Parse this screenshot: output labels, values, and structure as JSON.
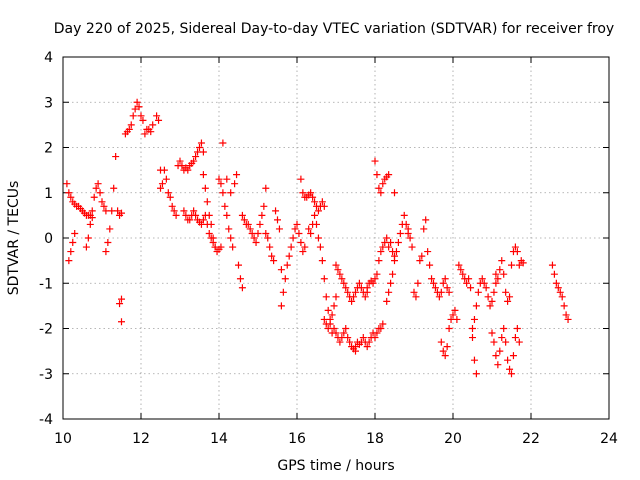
{
  "chart_data": {
    "type": "scatter",
    "title": "Day 220 of 2025, Sidereal Day-to-day VTEC variation (SDTVAR) for receiver froy",
    "xlabel": "GPS time / hours",
    "ylabel": "SDTVAR / TECUs",
    "xlim": [
      10,
      24
    ],
    "ylim": [
      -4,
      4
    ],
    "xticks": [
      10,
      12,
      14,
      16,
      18,
      20,
      22,
      24
    ],
    "yticks": [
      -4,
      -3,
      -2,
      -1,
      0,
      1,
      2,
      3,
      4
    ],
    "xtick_labels": [
      "10",
      "12",
      "14",
      "16",
      "18",
      "20",
      "22",
      "24"
    ],
    "ytick_labels": [
      "-4",
      "-3",
      "-2",
      "-1",
      "0",
      "1",
      "2",
      "3",
      "4"
    ],
    "grid": true,
    "marker": "+",
    "color": "#ff0000",
    "series": [
      {
        "name": "trace-a",
        "x": [
          10.1,
          10.15,
          10.2,
          10.25,
          10.3,
          10.35,
          10.4,
          10.45,
          10.5,
          10.55,
          10.6,
          10.65,
          10.7,
          10.75
        ],
        "y": [
          1.2,
          1.0,
          0.9,
          0.8,
          0.75,
          0.7,
          0.7,
          0.65,
          0.6,
          0.55,
          0.5,
          0.5,
          0.5,
          0.45
        ]
      },
      {
        "name": "trace-b",
        "x": [
          10.15,
          10.2,
          10.25,
          10.3
        ],
        "y": [
          -0.5,
          -0.3,
          -0.1,
          0.1
        ]
      },
      {
        "name": "trace-c",
        "x": [
          10.6,
          10.65,
          10.7,
          10.75,
          10.8,
          10.85,
          10.9,
          10.95,
          11.0,
          11.05,
          11.1
        ],
        "y": [
          -0.2,
          0.0,
          0.3,
          0.6,
          0.9,
          1.1,
          1.2,
          1.0,
          0.8,
          0.7,
          0.6
        ]
      },
      {
        "name": "trace-d",
        "x": [
          11.1,
          11.15,
          11.2,
          11.25,
          11.3,
          11.35
        ],
        "y": [
          -0.3,
          -0.1,
          0.2,
          0.6,
          1.1,
          1.8
        ]
      },
      {
        "name": "trace-e",
        "x": [
          11.4,
          11.45,
          11.5,
          11.5,
          11.45,
          11.5
        ],
        "y": [
          0.6,
          0.5,
          0.55,
          -1.35,
          -1.45,
          -1.85
        ]
      },
      {
        "name": "trace-f",
        "x": [
          11.6,
          11.65,
          11.7,
          11.75,
          11.8,
          11.85,
          11.9,
          11.95,
          12.0,
          12.05
        ],
        "y": [
          2.3,
          2.35,
          2.4,
          2.5,
          2.7,
          2.85,
          3.0,
          2.9,
          2.7,
          2.6
        ]
      },
      {
        "name": "trace-g",
        "x": [
          12.1,
          12.15,
          12.2,
          12.25,
          12.3,
          12.4,
          12.45,
          12.5
        ],
        "y": [
          2.3,
          2.4,
          2.4,
          2.35,
          2.5,
          2.7,
          2.6,
          1.5
        ]
      },
      {
        "name": "trace-h",
        "x": [
          12.5,
          12.55,
          12.6,
          12.65,
          12.7,
          12.75,
          12.8,
          12.85,
          12.9
        ],
        "y": [
          1.1,
          1.2,
          1.5,
          1.3,
          1.0,
          0.9,
          0.7,
          0.6,
          0.5
        ]
      },
      {
        "name": "trace-i",
        "x": [
          12.95,
          13.0,
          13.05,
          13.1,
          13.15,
          13.2,
          13.25,
          13.3,
          13.35,
          13.4,
          13.45,
          13.5,
          13.55,
          13.6
        ],
        "y": [
          1.6,
          1.7,
          1.6,
          1.5,
          1.55,
          1.5,
          1.6,
          1.65,
          1.7,
          1.8,
          1.9,
          2.0,
          2.1,
          1.9
        ]
      },
      {
        "name": "trace-j",
        "x": [
          13.1,
          13.15,
          13.2,
          13.25,
          13.3,
          13.35,
          13.4,
          13.45,
          13.5,
          13.55,
          13.6,
          13.65,
          13.7,
          13.75,
          13.8,
          13.85,
          13.9
        ],
        "y": [
          0.6,
          0.5,
          0.4,
          0.4,
          0.5,
          0.6,
          0.5,
          0.4,
          0.35,
          0.3,
          0.4,
          0.5,
          0.3,
          0.1,
          0.0,
          -0.1,
          -0.2
        ]
      },
      {
        "name": "trace-k",
        "x": [
          13.6,
          13.65,
          13.7,
          13.75,
          13.8,
          13.85,
          13.9,
          13.95,
          14.0,
          14.05
        ],
        "y": [
          1.4,
          1.1,
          0.8,
          0.5,
          0.3,
          0.0,
          -0.2,
          -0.3,
          -0.25,
          -0.2
        ]
      },
      {
        "name": "trace-l",
        "x": [
          14.0,
          14.05,
          14.1,
          14.15,
          14.2,
          14.25,
          14.3,
          14.35
        ],
        "y": [
          1.3,
          1.2,
          1.0,
          0.7,
          0.5,
          0.2,
          0.0,
          -0.2
        ]
      },
      {
        "name": "trace-m",
        "x": [
          14.1,
          14.2,
          14.3,
          14.4,
          14.45,
          14.5,
          14.55,
          14.6
        ],
        "y": [
          2.1,
          1.3,
          1.0,
          1.2,
          1.4,
          -0.6,
          -0.9,
          -1.1
        ]
      },
      {
        "name": "trace-n",
        "x": [
          14.6,
          14.65,
          14.7,
          14.75,
          14.8,
          14.85,
          14.9,
          14.95,
          15.0,
          15.05,
          15.1,
          15.15,
          15.2
        ],
        "y": [
          0.5,
          0.4,
          0.3,
          0.3,
          0.2,
          0.1,
          0.0,
          -0.1,
          0.1,
          0.3,
          0.5,
          0.7,
          1.1
        ]
      },
      {
        "name": "trace-o",
        "x": [
          15.2,
          15.25,
          15.3,
          15.35,
          15.4,
          15.45,
          15.5,
          15.55,
          15.6
        ],
        "y": [
          0.1,
          0.0,
          -0.2,
          -0.4,
          -0.5,
          0.6,
          0.4,
          0.2,
          -0.7
        ]
      },
      {
        "name": "trace-p",
        "x": [
          15.6,
          15.65,
          15.7,
          15.75,
          15.8,
          15.85,
          15.9,
          15.95,
          16.0,
          16.05,
          16.1,
          16.15,
          16.2
        ],
        "y": [
          -1.5,
          -1.2,
          -0.9,
          -0.6,
          -0.4,
          -0.2,
          0.0,
          0.2,
          0.3,
          0.1,
          -0.1,
          -0.3,
          -0.2
        ]
      },
      {
        "name": "trace-q",
        "x": [
          16.1,
          16.15,
          16.2,
          16.25,
          16.3,
          16.35,
          16.4,
          16.45,
          16.5,
          16.55,
          16.6,
          16.65,
          16.7
        ],
        "y": [
          1.3,
          1.0,
          0.9,
          0.9,
          0.95,
          1.0,
          0.9,
          0.8,
          0.7,
          0.6,
          0.7,
          0.8,
          0.7
        ]
      },
      {
        "name": "trace-r",
        "x": [
          16.3,
          16.35,
          16.4,
          16.45,
          16.5,
          16.55,
          16.6,
          16.65,
          16.7,
          16.75,
          16.8,
          16.85,
          16.9,
          16.95,
          17.0
        ],
        "y": [
          0.2,
          0.1,
          0.3,
          0.5,
          0.3,
          0.0,
          -0.2,
          -0.5,
          -0.9,
          -1.3,
          -1.6,
          -1.8,
          -1.7,
          -1.5,
          -1.3
        ]
      },
      {
        "name": "trace-s",
        "x": [
          16.7,
          16.75,
          16.8,
          16.85,
          16.9,
          16.95,
          17.0,
          17.05,
          17.1,
          17.15,
          17.2,
          17.25,
          17.3,
          17.35,
          17.4,
          17.45,
          17.5
        ],
        "y": [
          -1.8,
          -1.9,
          -2.0,
          -1.9,
          -2.1,
          -2.0,
          -2.1,
          -2.2,
          -2.3,
          -2.2,
          -2.1,
          -2.0,
          -2.2,
          -2.3,
          -2.4,
          -2.45,
          -2.5
        ]
      },
      {
        "name": "trace-t",
        "x": [
          17.5,
          17.55,
          17.6,
          17.65,
          17.7,
          17.75,
          17.8,
          17.85,
          17.9,
          17.95,
          18.0,
          18.05,
          18.1,
          18.15,
          18.2
        ],
        "y": [
          -2.4,
          -2.3,
          -2.35,
          -2.3,
          -2.2,
          -2.3,
          -2.4,
          -2.3,
          -2.2,
          -2.1,
          -2.2,
          -2.1,
          -2.0,
          -2.0,
          -1.9
        ]
      },
      {
        "name": "trace-u",
        "x": [
          17.0,
          17.05,
          17.1,
          17.15,
          17.2,
          17.25,
          17.3,
          17.35,
          17.4,
          17.45,
          17.5,
          17.55,
          17.6,
          17.65,
          17.7,
          17.75,
          17.8
        ],
        "y": [
          -0.6,
          -0.7,
          -0.8,
          -0.9,
          -1.0,
          -1.1,
          -1.2,
          -1.3,
          -1.4,
          -1.3,
          -1.2,
          -1.1,
          -1.0,
          -1.1,
          -1.2,
          -1.3,
          -1.2
        ]
      },
      {
        "name": "trace-v",
        "x": [
          17.8,
          17.85,
          17.9,
          17.95,
          18.0,
          18.05,
          18.1,
          18.15,
          18.2,
          18.25,
          18.3,
          18.35,
          18.4,
          18.45,
          18.5
        ],
        "y": [
          -1.1,
          -1.0,
          -0.95,
          -1.0,
          -0.9,
          -0.8,
          -0.5,
          -0.3,
          -0.2,
          -0.1,
          0.0,
          -0.2,
          -0.1,
          -0.3,
          -0.4
        ]
      },
      {
        "name": "trace-w",
        "x": [
          18.0,
          18.05,
          18.1,
          18.15,
          18.2,
          18.25,
          18.3,
          18.35,
          18.5
        ],
        "y": [
          1.7,
          1.4,
          1.1,
          1.0,
          1.2,
          1.3,
          1.35,
          1.4,
          1.0
        ]
      },
      {
        "name": "trace-x",
        "x": [
          18.3,
          18.35,
          18.4,
          18.45,
          18.5,
          18.55,
          18.6,
          18.65,
          18.7,
          18.75,
          18.8,
          18.85
        ],
        "y": [
          -1.4,
          -1.2,
          -1.0,
          -0.8,
          -0.5,
          -0.3,
          -0.1,
          0.1,
          0.3,
          0.5,
          0.3,
          0.1
        ]
      },
      {
        "name": "trace-y",
        "x": [
          18.85,
          18.9,
          18.95,
          19.0,
          19.05,
          19.1,
          19.15,
          19.2,
          19.25,
          19.3,
          19.35,
          19.4,
          19.45,
          19.5,
          19.55,
          19.6,
          19.65,
          19.7,
          19.75,
          19.8,
          19.85,
          19.9
        ],
        "y": [
          0.2,
          0.0,
          -0.2,
          -1.2,
          -1.3,
          -1.0,
          -0.5,
          -0.4,
          0.2,
          0.4,
          -0.3,
          -0.6,
          -0.9,
          -1.0,
          -1.1,
          -1.2,
          -1.3,
          -1.2,
          -1.0,
          -0.9,
          -1.1,
          -1.2
        ]
      },
      {
        "name": "trace-z",
        "x": [
          19.7,
          19.75,
          19.8,
          19.85,
          19.9,
          19.95,
          20.0,
          20.05,
          20.1,
          20.15,
          20.2,
          20.25,
          20.3,
          20.35,
          20.4,
          20.45,
          20.5,
          20.55,
          20.6
        ],
        "y": [
          -2.3,
          -2.5,
          -2.6,
          -2.4,
          -2.0,
          -1.8,
          -1.7,
          -1.6,
          -1.8,
          -0.6,
          -0.7,
          -0.8,
          -0.9,
          -1.0,
          -0.9,
          -1.1,
          -2.2,
          -2.7,
          -3.0
        ]
      },
      {
        "name": "trace-aa",
        "x": [
          20.5,
          20.55,
          20.6,
          20.65,
          20.7,
          20.75,
          20.8,
          20.85,
          20.9,
          20.95,
          21.0,
          21.05,
          21.1
        ],
        "y": [
          -2.0,
          -1.8,
          -1.5,
          -1.2,
          -1.0,
          -0.9,
          -1.0,
          -1.1,
          -1.3,
          -1.5,
          -1.4,
          -1.2,
          -1.0
        ]
      },
      {
        "name": "trace-ab",
        "x": [
          21.0,
          21.05,
          21.1,
          21.15,
          21.2,
          21.25,
          21.3,
          21.35,
          21.4,
          21.45,
          21.5,
          21.55,
          21.6,
          21.65,
          21.7
        ],
        "y": [
          -2.1,
          -2.3,
          -2.6,
          -2.8,
          -2.5,
          -2.2,
          -2.0,
          -2.3,
          -2.7,
          -2.9,
          -3.0,
          -2.6,
          -2.2,
          -2.0,
          -2.3
        ]
      },
      {
        "name": "trace-ac",
        "x": [
          21.1,
          21.15,
          21.2,
          21.25,
          21.3,
          21.35,
          21.4,
          21.45,
          21.5,
          21.55,
          21.6,
          21.65,
          21.7,
          21.75,
          21.8
        ],
        "y": [
          -0.8,
          -0.9,
          -0.7,
          -0.5,
          -0.8,
          -1.2,
          -1.4,
          -1.3,
          -0.6,
          -0.3,
          -0.2,
          -0.3,
          -0.6,
          -0.5,
          -0.55
        ]
      },
      {
        "name": "trace-ad",
        "x": [
          22.55,
          22.6,
          22.65,
          22.7,
          22.75,
          22.8,
          22.85,
          22.9,
          22.95
        ],
        "y": [
          -0.6,
          -0.8,
          -1.0,
          -1.1,
          -1.2,
          -1.3,
          -1.5,
          -1.7,
          -1.8
        ]
      }
    ]
  }
}
